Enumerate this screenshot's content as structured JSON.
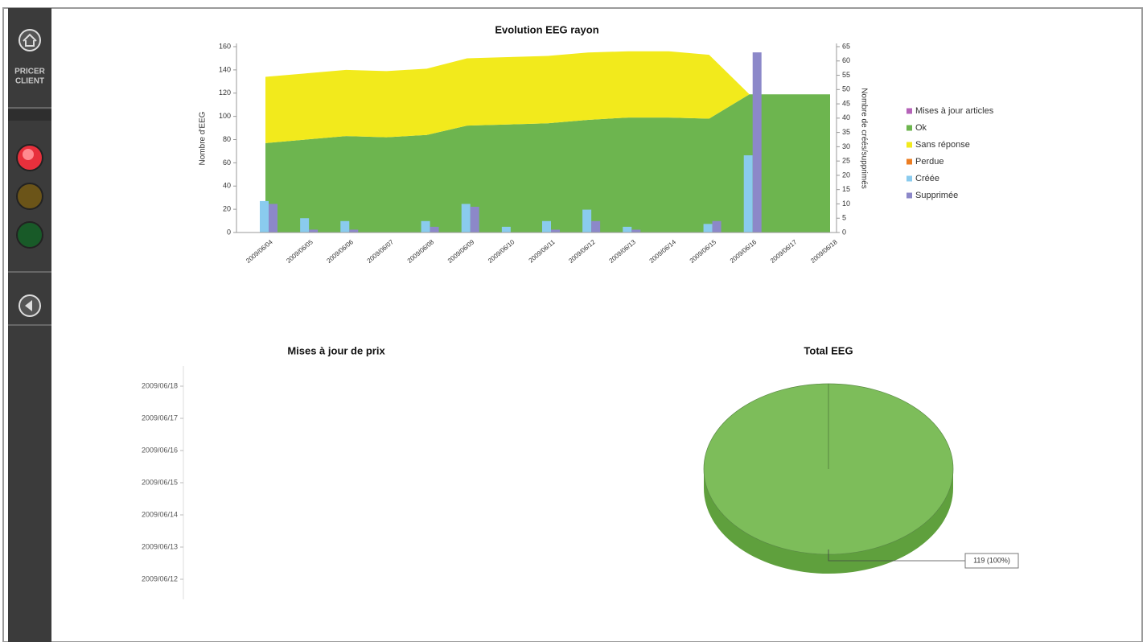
{
  "sidebar": {
    "brand_line1": "PRICER",
    "brand_line2": "CLIENT"
  },
  "chart_data": [
    {
      "type": "area-bar",
      "title": "Evolution EEG rayon",
      "y_label": "Nombre d'EEG",
      "y2_label": "Nombre de créés/supprimés",
      "categories": [
        "2009/06/04",
        "2009/06/05",
        "2009/06/06",
        "2009/06/07",
        "2009/06/08",
        "2009/06/09",
        "2009/06/10",
        "2009/06/11",
        "2009/06/12",
        "2009/06/13",
        "2009/06/14",
        "2009/06/15",
        "2009/06/16",
        "2009/06/17",
        "2009/06/18"
      ],
      "ylim": [
        0,
        160
      ],
      "yticks": [
        0,
        20,
        40,
        60,
        80,
        100,
        120,
        140,
        160
      ],
      "y2lim": [
        0,
        65
      ],
      "y2ticks": [
        0,
        5,
        10,
        15,
        20,
        25,
        30,
        35,
        40,
        45,
        50,
        55,
        60,
        65
      ],
      "legend": "right",
      "series": [
        {
          "name": "Mises à jour articles",
          "color": "#b563b8"
        },
        {
          "name": "Ok",
          "color": "#6db54f",
          "mark": "area",
          "values": [
            77,
            80,
            83,
            82,
            84,
            92,
            93,
            94,
            97,
            99,
            99,
            98,
            119,
            119,
            119
          ]
        },
        {
          "name": "Sans réponse",
          "color": "#f2ea1c",
          "mark": "area",
          "values": [
            57,
            57,
            57,
            57,
            57,
            58,
            58,
            58,
            58,
            57,
            57,
            55,
            0,
            0,
            0
          ]
        },
        {
          "name": "Perdue",
          "color": "#ec7d22"
        },
        {
          "name": "Créée",
          "color": "#8acbee",
          "mark": "bar",
          "axis": "y2",
          "values": [
            11,
            5,
            4,
            0,
            4,
            10,
            2,
            4,
            8,
            2,
            0,
            3,
            27,
            0,
            0
          ]
        },
        {
          "name": "Supprimée",
          "color": "#8c88c9",
          "mark": "bar",
          "axis": "y2",
          "values": [
            10,
            1,
            1,
            0,
            2,
            9,
            0,
            1,
            4,
            1,
            0,
            4,
            63,
            0,
            0
          ]
        }
      ]
    },
    {
      "type": "hbar",
      "title": "Mises à jour de prix",
      "categories": [
        "2009/06/18",
        "2009/06/17",
        "2009/06/16",
        "2009/06/15",
        "2009/06/14",
        "2009/06/13",
        "2009/06/12"
      ]
    },
    {
      "type": "pie3d",
      "title": "Total EEG",
      "values": [
        119
      ],
      "value_labels": [
        "119 (100%)"
      ],
      "colors": [
        "#7dbd5a"
      ]
    }
  ]
}
